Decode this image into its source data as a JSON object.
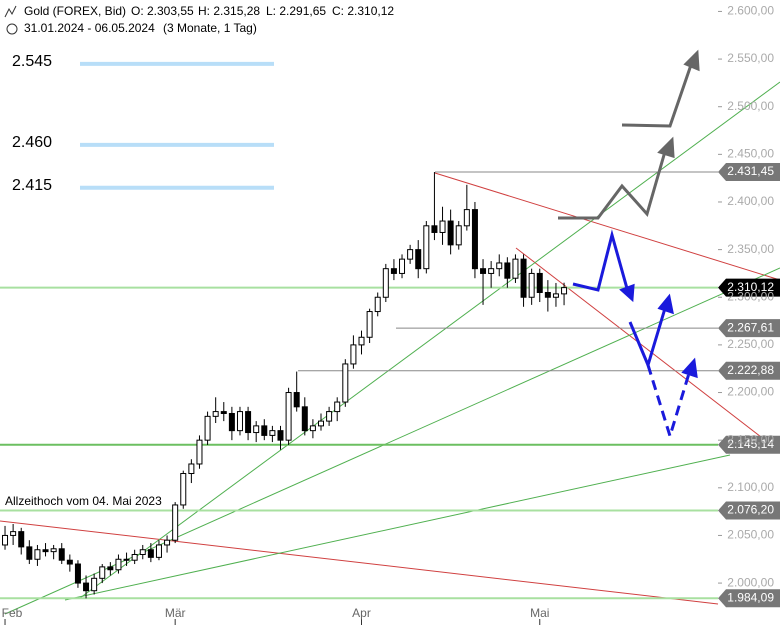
{
  "header": {
    "instrument": "Gold (FOREX, Bid)",
    "open": "O: 2.303,55",
    "high": "H: 2.315,28",
    "low": "L: 2.291,65",
    "close": "C: 2.310,12",
    "range": "31.01.2024 - 06.05.2024",
    "period": "(3 Monate, 1 Tag)"
  },
  "chart_data": {
    "type": "candlestick",
    "ohlc": [
      [
        2040,
        2060,
        2035,
        2050
      ],
      [
        2050,
        2062,
        2040,
        2054
      ],
      [
        2054,
        2058,
        2030,
        2038
      ],
      [
        2038,
        2045,
        2020,
        2025
      ],
      [
        2025,
        2040,
        2018,
        2035
      ],
      [
        2035,
        2042,
        2028,
        2033
      ],
      [
        2033,
        2040,
        2025,
        2036
      ],
      [
        2036,
        2042,
        2020,
        2024
      ],
      [
        2024,
        2030,
        2012,
        2020
      ],
      [
        2020,
        2024,
        1995,
        2000
      ],
      [
        2000,
        2008,
        1984,
        1992
      ],
      [
        1992,
        2010,
        1988,
        2005
      ],
      [
        2005,
        2020,
        2000,
        2017
      ],
      [
        2017,
        2022,
        2008,
        2014
      ],
      [
        2014,
        2030,
        2010,
        2025
      ],
      [
        2025,
        2032,
        2018,
        2024
      ],
      [
        2024,
        2035,
        2020,
        2030
      ],
      [
        2030,
        2040,
        2025,
        2035
      ],
      [
        2035,
        2042,
        2022,
        2027
      ],
      [
        2027,
        2045,
        2024,
        2040
      ],
      [
        2040,
        2050,
        2032,
        2045
      ],
      [
        2045,
        2085,
        2042,
        2082
      ],
      [
        2082,
        2118,
        2078,
        2115
      ],
      [
        2115,
        2130,
        2105,
        2125
      ],
      [
        2125,
        2155,
        2120,
        2150
      ],
      [
        2150,
        2180,
        2145,
        2175
      ],
      [
        2175,
        2195,
        2168,
        2180
      ],
      [
        2180,
        2190,
        2170,
        2178
      ],
      [
        2178,
        2185,
        2150,
        2160
      ],
      [
        2160,
        2185,
        2155,
        2180
      ],
      [
        2180,
        2185,
        2150,
        2158
      ],
      [
        2158,
        2170,
        2148,
        2165
      ],
      [
        2165,
        2172,
        2150,
        2155
      ],
      [
        2155,
        2165,
        2148,
        2160
      ],
      [
        2160,
        2165,
        2140,
        2150
      ],
      [
        2150,
        2205,
        2145,
        2200
      ],
      [
        2200,
        2222,
        2180,
        2185
      ],
      [
        2185,
        2195,
        2155,
        2160
      ],
      [
        2160,
        2172,
        2152,
        2165
      ],
      [
        2165,
        2178,
        2160,
        2170
      ],
      [
        2170,
        2185,
        2165,
        2180
      ],
      [
        2180,
        2195,
        2170,
        2190
      ],
      [
        2190,
        2235,
        2185,
        2230
      ],
      [
        2230,
        2260,
        2225,
        2250
      ],
      [
        2250,
        2265,
        2240,
        2258
      ],
      [
        2258,
        2288,
        2252,
        2285
      ],
      [
        2285,
        2305,
        2280,
        2300
      ],
      [
        2300,
        2335,
        2295,
        2330
      ],
      [
        2330,
        2340,
        2318,
        2325
      ],
      [
        2325,
        2345,
        2320,
        2340
      ],
      [
        2340,
        2355,
        2335,
        2350
      ],
      [
        2350,
        2360,
        2320,
        2330
      ],
      [
        2330,
        2380,
        2325,
        2375
      ],
      [
        2375,
        2431.45,
        2360,
        2368
      ],
      [
        2368,
        2395,
        2355,
        2380
      ],
      [
        2380,
        2392,
        2345,
        2355
      ],
      [
        2355,
        2380,
        2350,
        2375
      ],
      [
        2375,
        2418,
        2370,
        2392
      ],
      [
        2392,
        2400,
        2320,
        2330
      ],
      [
        2330,
        2340,
        2292,
        2325
      ],
      [
        2325,
        2338,
        2310,
        2330
      ],
      [
        2330,
        2345,
        2322,
        2336
      ],
      [
        2336,
        2342,
        2310,
        2320
      ],
      [
        2320,
        2345,
        2315,
        2340
      ],
      [
        2340,
        2345,
        2290,
        2300
      ],
      [
        2300,
        2330,
        2292,
        2325
      ],
      [
        2325,
        2330,
        2295,
        2305
      ],
      [
        2305,
        2318,
        2285,
        2300
      ],
      [
        2300,
        2315,
        2290,
        2303.55
      ],
      [
        2303.55,
        2315.28,
        2291.65,
        2310.12
      ]
    ],
    "xlim": [
      -0.62,
      88
    ],
    "xticks": [
      {
        "value": 0,
        "label": "Feb"
      },
      {
        "value": 21,
        "label": "Mär"
      },
      {
        "value": 44,
        "label": "Apr"
      },
      {
        "value": 66,
        "label": "Mai"
      }
    ],
    "ylim": [
      1956,
      2612
    ],
    "yticks": [
      {
        "value": 2000,
        "label": "2.000,00"
      },
      {
        "value": 2050,
        "label": "2.050,00"
      },
      {
        "value": 2100,
        "label": "2.100,00"
      },
      {
        "value": 2150,
        "label": "2.150,00"
      },
      {
        "value": 2200,
        "label": "2.200,00"
      },
      {
        "value": 2250,
        "label": "2.250,00"
      },
      {
        "value": 2300,
        "label": "2.300,00"
      },
      {
        "value": 2350,
        "label": "2.350,00"
      },
      {
        "value": 2400,
        "label": "2.400,00"
      },
      {
        "value": 2450,
        "label": "2.450,00"
      },
      {
        "value": 2500,
        "label": "2.500,00"
      },
      {
        "value": 2550,
        "label": "2.550,00"
      },
      {
        "value": 2600,
        "label": "2.600,00"
      }
    ],
    "levels": {
      "values": [
        2431.45,
        2310.12,
        2267.61,
        2222.88,
        2145.14,
        2076.2,
        1984.09
      ],
      "value_labels": [
        "2.431,45",
        "2.310,12",
        "2.267,61",
        "2.222,88",
        "2.145,14",
        "2.076,20",
        "1.984,09"
      ],
      "colors": [
        "#777777",
        "#a8e0a0",
        "#777777",
        "#777777",
        "#6cbf60",
        "#a8e0a0",
        "#a8e0a0"
      ]
    },
    "targets": {
      "values": [
        2545,
        2460,
        2415
      ],
      "value_labels": [
        "2.545",
        "2.460",
        "2.415"
      ],
      "color": "#b8def8"
    },
    "annotation": "Allzeithoch  vom 04. Mai 2023",
    "up_color": "#ffffff",
    "down_color": "#000000"
  }
}
